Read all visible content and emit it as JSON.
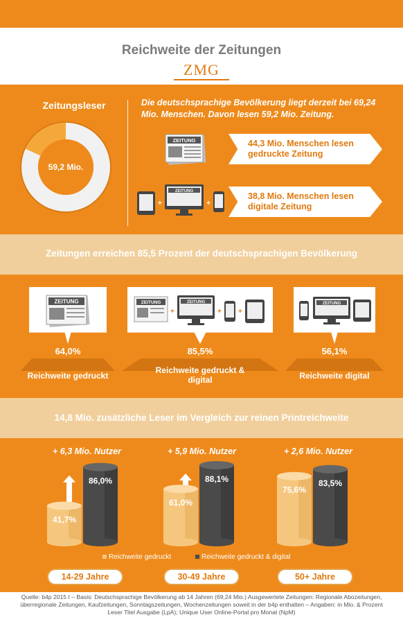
{
  "header": {
    "title": "Reichweite der Zeitungen",
    "logo": "ZMG"
  },
  "readers": {
    "title": "Zeitungsleser",
    "donut_label": "59,2 Mio.",
    "population_text": "Die deutschsprachige Bevölkerung liegt derzeit bei 69,24 Mio. Menschen. Davon lesen 59,2 Mio. Zeitung.",
    "print_label": "44,3 Mio. Menschen lesen gedruckte Zeitung",
    "digital_label": "38,8 Mio. Menschen lesen digitale Zeitung",
    "newspaper_word": "ZEITUNG",
    "plus_sign": "+"
  },
  "reach": {
    "headline": "Zeitungen erreichen 85,5 Prozent der deutschsprachigen Bevölkerung",
    "items": [
      {
        "pct": "64,0%",
        "label": "Reichweite gedruckt"
      },
      {
        "pct": "85,5%",
        "label": "Reichweite gedruckt & digital"
      },
      {
        "pct": "56,1%",
        "label": "Reichweite digital"
      }
    ]
  },
  "extra": {
    "headline": "14,8 Mio. zusätzliche Leser im Vergleich zur reinen Printreichweite"
  },
  "chart_data": {
    "type": "bar",
    "categories": [
      "14-29 Jahre",
      "30-49 Jahre",
      "50+ Jahre"
    ],
    "series": [
      {
        "name": "Reichweite gedruckt",
        "values": [
          41.7,
          61.0,
          75.6
        ],
        "labels": [
          "41,7%",
          "61,0%",
          "75,6%"
        ],
        "color": "#f5c77e"
      },
      {
        "name": "Reichweite gedruckt & digital",
        "values": [
          86.0,
          88.1,
          83.5
        ],
        "labels": [
          "86,0%",
          "88,1%",
          "83,5%"
        ],
        "color": "#4a4a4a"
      }
    ],
    "annotations": [
      "+ 6,3 Mio. Nutzer",
      "+ 5,9 Mio. Nutzer",
      "+ 2,6 Mio. Nutzer"
    ],
    "ylim": [
      0,
      100
    ],
    "legend": "bottom",
    "title": "",
    "xlabel": "",
    "ylabel": ""
  },
  "colors": {
    "orange": "#ee8a1b",
    "light_band": "#f1cf9c",
    "dark_orange": "#d27512",
    "gray": "#4a4a4a"
  },
  "source": "Quelle: b4p 2015 I – Basis: Deutschsprachige Bevölkerung ab 14 Jahren (69,24 Mio.) Ausgewertete Zeitungen: Regionale Abozeitungen, überregionale Zeitungen, Kaufzeitungen, Sonntagszeitungen, Wochenzeitungen soweit in der b4p enthalten – Angaben: in Mio. & Prozent Leser Titel Ausgabe (LpA); Unique User Online-Portal pro Monat (NpM)"
}
